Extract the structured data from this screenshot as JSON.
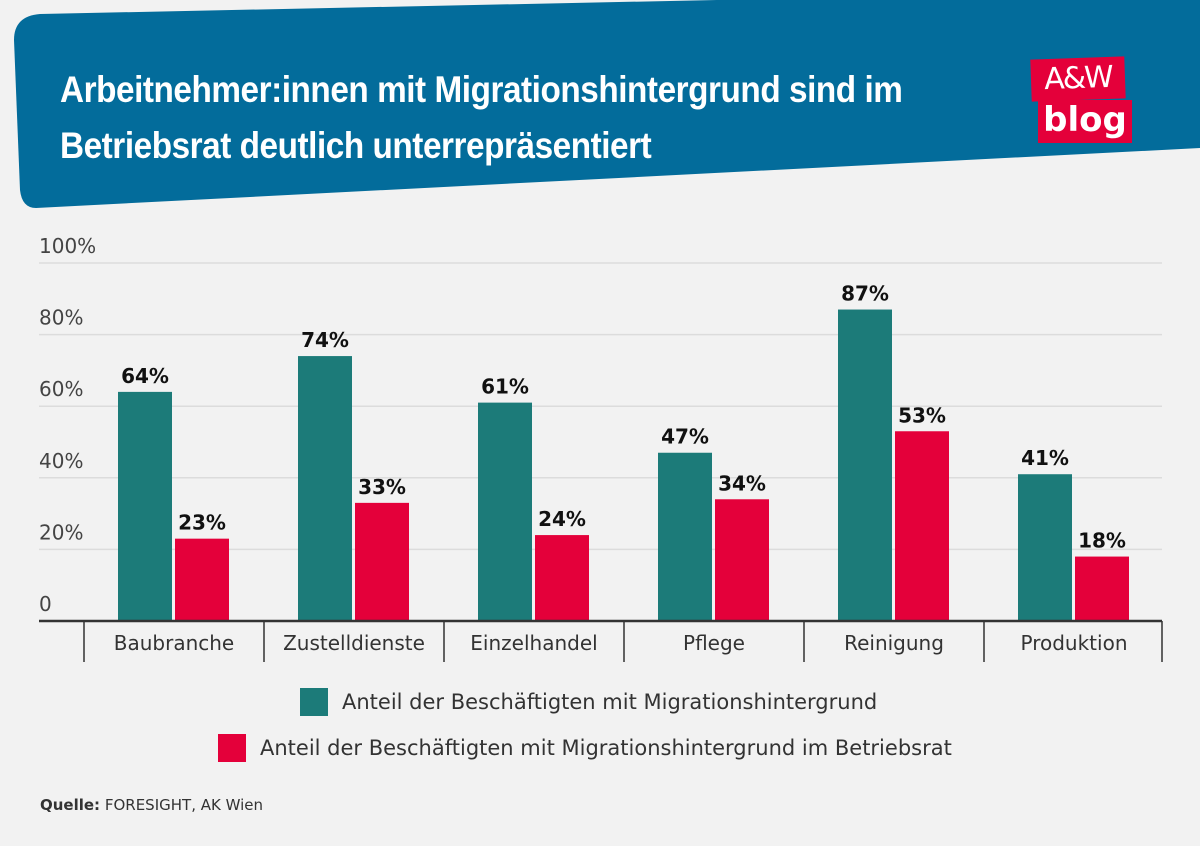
{
  "title": "Arbeitnehmer:innen mit Migrationshintergrund sind im Betriebsrat deutlich unterrepräsentiert",
  "logo": {
    "line1": "A&W",
    "line2": "blog"
  },
  "colors": {
    "header": "#036c9b",
    "series1": "#1c7b79",
    "series2": "#e4003a",
    "logo": "#e4003a",
    "background": "#f2f2f2"
  },
  "source": {
    "label": "Quelle:",
    "text": "FORESIGHT, AK Wien"
  },
  "chart_data": {
    "type": "bar",
    "categories": [
      "Baubranche",
      "Zustelldienste",
      "Einzelhandel",
      "Pflege",
      "Reinigung",
      "Produktion"
    ],
    "series": [
      {
        "name": "Anteil der Beschäftigten mit Migrationshintergrund",
        "values": [
          64,
          74,
          61,
          47,
          87,
          41
        ],
        "color": "#1c7b79"
      },
      {
        "name": "Anteil der Beschäftigten mit Migrationshintergrund im Betriebsrat",
        "values": [
          23,
          33,
          24,
          34,
          53,
          18
        ],
        "color": "#e4003a"
      }
    ],
    "ylim": [
      0,
      100
    ],
    "yticks": [
      "0",
      "20%",
      "40%",
      "60%",
      "80%",
      "100%"
    ],
    "grid": true,
    "legend": "bottom",
    "data_labels": true
  }
}
